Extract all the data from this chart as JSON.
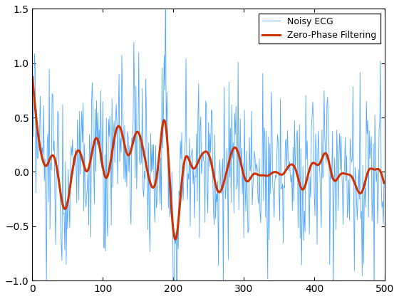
{
  "title": "",
  "xlabel": "",
  "ylabel": "",
  "xlim": [
    0,
    500
  ],
  "ylim": [
    -1.0,
    1.5
  ],
  "xticks": [
    0,
    100,
    200,
    300,
    400,
    500
  ],
  "yticks": [
    -1.0,
    -0.5,
    0.0,
    0.5,
    1.0,
    1.5
  ],
  "noisy_color": "#4da6ff",
  "filtered_color": "#cc3300",
  "noisy_linewidth": 0.6,
  "filtered_linewidth": 2.2,
  "legend_labels": [
    "Noisy ECG",
    "Zero-Phase Filtering"
  ],
  "n_samples": 500,
  "seed": 0,
  "background_color": "#ffffff",
  "noise_amp": 0.4
}
